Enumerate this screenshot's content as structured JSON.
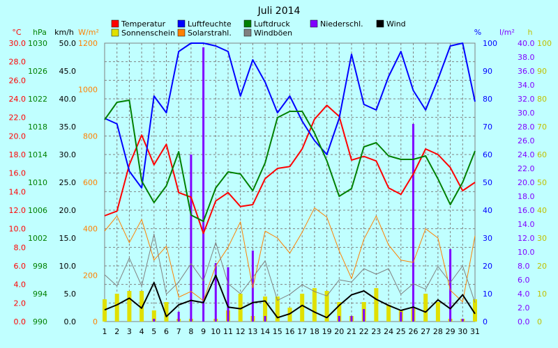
{
  "chart_data": {
    "type": "line",
    "title": "Juli 2014",
    "grid": true,
    "legend": "top",
    "x": [
      1,
      2,
      3,
      4,
      5,
      6,
      7,
      8,
      9,
      10,
      11,
      12,
      13,
      14,
      15,
      16,
      17,
      18,
      19,
      20,
      21,
      22,
      23,
      24,
      25,
      26,
      27,
      28,
      29,
      30,
      31
    ],
    "axes": [
      {
        "unit": "°C",
        "color": "#ff0000",
        "side": "left",
        "min": 0,
        "max": 30,
        "step": 2,
        "decimals": 1
      },
      {
        "unit": "hPa",
        "color": "#008000",
        "side": "left",
        "min": 990,
        "max": 1030,
        "step": 4,
        "decimals": 0
      },
      {
        "unit": "km/h",
        "color": "#000000",
        "side": "left",
        "min": 0,
        "max": 50,
        "step": 5,
        "decimals": 1
      },
      {
        "unit": "W/m²",
        "color": "#ff8000",
        "side": "left",
        "min": 0,
        "max": 1200,
        "step": 200,
        "decimals": 0
      },
      {
        "unit": "%",
        "color": "#0000ff",
        "side": "right",
        "min": 0,
        "max": 100,
        "step": 10,
        "decimals": 0
      },
      {
        "unit": "l/m²",
        "color": "#8000ff",
        "side": "right",
        "min": 0,
        "max": 40,
        "step": 2,
        "decimals": 1
      },
      {
        "unit": "h",
        "color": "#c0c000",
        "side": "right",
        "min": 0,
        "max": 100,
        "step": 10,
        "decimals": 0
      }
    ],
    "legend_entries": [
      {
        "name": "Temperatur",
        "color": "#ff0000"
      },
      {
        "name": "Luftfeuchte",
        "color": "#0000ff"
      },
      {
        "name": "Luftdruck",
        "color": "#008000"
      },
      {
        "name": "Niederschl.",
        "color": "#8000ff"
      },
      {
        "name": "Wind",
        "color": "#000000"
      },
      {
        "name": "Sonnenschein",
        "color": "#e0e000"
      },
      {
        "name": "Solarstrahl.",
        "color": "#ff8000"
      },
      {
        "name": "Windböen",
        "color": "#808080"
      }
    ],
    "series": [
      {
        "name": "Temperatur",
        "axis": 0,
        "kind": "line",
        "color": "#ff0000",
        "width": 2,
        "values": [
          11.4,
          11.9,
          16.9,
          20.1,
          16.9,
          19.1,
          13.9,
          13.4,
          9.5,
          13.0,
          13.9,
          12.4,
          12.6,
          15.4,
          16.5,
          16.7,
          18.6,
          21.8,
          23.3,
          22.1,
          17.4,
          17.8,
          17.3,
          14.4,
          13.7,
          15.9,
          18.6,
          18.0,
          16.6,
          14.1,
          15.0
        ]
      },
      {
        "name": "Luftfeuchte",
        "axis": 4,
        "kind": "line",
        "color": "#0000ff",
        "width": 2,
        "values": [
          73,
          71,
          54,
          48,
          81,
          75,
          97,
          100,
          100,
          99,
          97,
          81,
          94,
          86,
          75,
          81,
          72,
          65,
          60,
          73,
          96,
          78,
          76,
          88,
          97,
          83,
          76,
          87,
          99,
          100,
          79
        ]
      },
      {
        "name": "Luftdruck",
        "axis": 1,
        "kind": "line",
        "color": "#008000",
        "width": 2,
        "values": [
          1019,
          1021.5,
          1021.8,
          1010.2,
          1007.1,
          1009.5,
          1014.4,
          1005.3,
          1004.4,
          1009.2,
          1011.5,
          1011.2,
          1008.8,
          1012.8,
          1019.3,
          1020.2,
          1020.2,
          1017.1,
          1013.1,
          1008.0,
          1009.1,
          1015.1,
          1015.7,
          1013.8,
          1013.3,
          1013.3,
          1013.8,
          1010.5,
          1006.8,
          1010.0,
          1014.5
        ]
      },
      {
        "name": "Wind",
        "axis": 2,
        "kind": "line",
        "color": "#000000",
        "width": 2,
        "values": [
          2.1,
          3.0,
          4.2,
          2.4,
          7.0,
          0.9,
          3.0,
          3.8,
          3.4,
          8.3,
          2.6,
          2.3,
          3.4,
          3.7,
          0.7,
          1.4,
          2.9,
          1.7,
          0.7,
          2.9,
          4.8,
          5.5,
          4.0,
          2.9,
          2.0,
          2.6,
          1.7,
          3.9,
          2.3,
          4.8,
          1.4
        ]
      },
      {
        "name": "Solarstrahl.",
        "axis": 3,
        "kind": "line",
        "color": "#ff8000",
        "width": 1,
        "values": [
          390,
          455,
          340,
          440,
          265,
          325,
          105,
          130,
          90,
          240,
          320,
          430,
          145,
          390,
          360,
          295,
          385,
          490,
          450,
          305,
          185,
          355,
          455,
          330,
          265,
          255,
          400,
          360,
          135,
          85,
          370
        ]
      },
      {
        "name": "Windböen",
        "axis": 2,
        "kind": "line",
        "color": "#808080",
        "width": 1,
        "values": [
          8.4,
          6.4,
          11.4,
          6.4,
          15.7,
          4.9,
          7.1,
          10.4,
          7.3,
          14.2,
          6.8,
          5.0,
          7.9,
          10.9,
          3.8,
          4.9,
          6.6,
          5.4,
          4.6,
          7.5,
          7.1,
          9.5,
          8.5,
          9.5,
          4.9,
          6.8,
          5.8,
          9.9,
          7.0,
          10.0,
          3.4
        ]
      },
      {
        "name": "Sonnenschein",
        "axis": 6,
        "kind": "bar",
        "color": "#e0e000",
        "values": [
          8,
          10,
          11,
          11,
          4,
          7,
          1,
          1,
          0,
          1,
          4,
          10,
          2,
          9,
          9,
          5,
          10,
          12,
          11,
          7,
          2,
          7,
          12,
          6,
          4,
          5,
          10,
          7,
          1,
          1,
          8
        ]
      },
      {
        "name": "Niederschl.",
        "axis": 5,
        "kind": "bar",
        "color": "#8000ff",
        "values": [
          0,
          0,
          0,
          0,
          0.4,
          0,
          1.4,
          24,
          39.4,
          8.4,
          7.8,
          0,
          10.2,
          0.8,
          0,
          0,
          0,
          0,
          0,
          0.8,
          0.8,
          1.8,
          0,
          0,
          1.4,
          28.4,
          0,
          0,
          10.4,
          0.4,
          0
        ]
      }
    ]
  }
}
